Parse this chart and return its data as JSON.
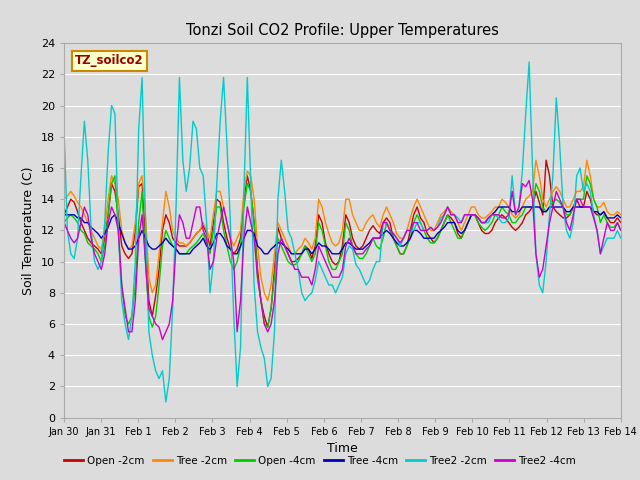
{
  "title": "Tonzi Soil CO2 Profile: Upper Temperatures",
  "xlabel": "Time",
  "ylabel": "Soil Temperature (C)",
  "ylim": [
    0,
    24
  ],
  "yticks": [
    0,
    2,
    4,
    6,
    8,
    10,
    12,
    14,
    16,
    18,
    20,
    22,
    24
  ],
  "background_color": "#dcdcdc",
  "plot_bg_color": "#dcdcdc",
  "grid_color": "#ffffff",
  "annotation_label": "TZ_soilco2",
  "annotation_color": "#990000",
  "annotation_bg": "#ffffcc",
  "annotation_border": "#cc8800",
  "legend_entries": [
    "Open -2cm",
    "Tree -2cm",
    "Open -4cm",
    "Tree -4cm",
    "Tree2 -2cm",
    "Tree2 -4cm"
  ],
  "line_colors": [
    "#cc0000",
    "#ff8800",
    "#00cc00",
    "#0000bb",
    "#00cccc",
    "#cc00cc"
  ],
  "xtick_labels": [
    "Jan 30",
    "Jan 31",
    "Feb 1",
    "Feb 2",
    "Feb 3",
    "Feb 4",
    "Feb 5",
    "Feb 6",
    "Feb 7",
    "Feb 8",
    "Feb 9",
    "Feb 10",
    "Feb 11",
    "Feb 12",
    "Feb 13",
    "Feb 14"
  ],
  "open_2cm": [
    13.0,
    13.5,
    14.0,
    13.8,
    13.2,
    12.5,
    12.0,
    11.5,
    11.2,
    11.0,
    10.8,
    10.5,
    11.5,
    13.0,
    15.0,
    14.5,
    13.0,
    11.0,
    10.5,
    10.2,
    10.5,
    12.0,
    14.8,
    15.0,
    11.5,
    7.5,
    6.5,
    7.8,
    9.5,
    12.0,
    13.0,
    12.5,
    11.5,
    11.2,
    11.0,
    11.0,
    11.0,
    11.2,
    11.5,
    11.8,
    12.0,
    12.3,
    11.8,
    11.0,
    12.5,
    14.0,
    13.8,
    12.5,
    11.5,
    10.8,
    10.5,
    10.8,
    11.5,
    14.0,
    15.5,
    14.5,
    12.5,
    9.5,
    7.5,
    6.5,
    5.8,
    7.0,
    9.5,
    12.2,
    11.5,
    11.0,
    10.5,
    10.0,
    10.0,
    10.2,
    10.5,
    11.0,
    10.8,
    10.2,
    11.0,
    13.0,
    12.5,
    11.2,
    10.5,
    10.0,
    9.8,
    10.0,
    11.0,
    13.0,
    12.5,
    11.5,
    11.0,
    10.8,
    11.0,
    11.5,
    12.0,
    12.3,
    12.0,
    11.8,
    12.5,
    12.8,
    12.5,
    11.5,
    11.0,
    10.5,
    10.5,
    11.0,
    12.0,
    13.0,
    13.5,
    12.8,
    12.5,
    11.8,
    11.5,
    11.2,
    11.5,
    12.0,
    12.5,
    13.0,
    12.8,
    12.5,
    11.8,
    11.5,
    12.0,
    12.5,
    13.0,
    13.0,
    12.5,
    12.0,
    11.8,
    11.8,
    12.0,
    12.5,
    12.8,
    13.0,
    12.8,
    12.5,
    12.2,
    12.0,
    12.2,
    12.5,
    13.0,
    13.2,
    13.5,
    14.5,
    13.8,
    13.0,
    16.5,
    15.5,
    13.5,
    13.2,
    13.0,
    12.8,
    12.8,
    13.0,
    13.5,
    14.0,
    13.5,
    13.5,
    14.5,
    14.0,
    13.2,
    13.0,
    13.0,
    13.2,
    12.8,
    12.5,
    12.5,
    12.8,
    12.5
  ],
  "tree_2cm": [
    14.0,
    14.2,
    14.5,
    14.2,
    13.8,
    13.5,
    13.0,
    12.5,
    12.0,
    11.5,
    11.0,
    10.8,
    12.0,
    14.0,
    15.5,
    15.0,
    14.0,
    12.0,
    11.2,
    10.8,
    11.0,
    12.5,
    15.0,
    15.5,
    13.0,
    9.0,
    8.0,
    8.5,
    10.5,
    12.5,
    14.5,
    13.5,
    12.0,
    11.5,
    11.2,
    11.2,
    11.0,
    11.2,
    11.5,
    11.8,
    12.0,
    12.5,
    12.0,
    11.5,
    13.0,
    14.5,
    14.5,
    13.5,
    12.5,
    11.5,
    11.0,
    11.5,
    12.0,
    14.5,
    15.8,
    15.5,
    14.0,
    11.0,
    9.0,
    8.0,
    7.5,
    8.5,
    10.5,
    12.5,
    12.0,
    11.5,
    11.0,
    10.5,
    10.5,
    10.8,
    11.0,
    11.5,
    11.2,
    10.8,
    11.5,
    14.0,
    13.5,
    12.5,
    11.8,
    11.2,
    11.0,
    11.2,
    12.0,
    14.0,
    14.0,
    13.0,
    12.5,
    12.0,
    12.0,
    12.5,
    12.8,
    13.0,
    12.5,
    12.2,
    13.0,
    13.5,
    13.0,
    12.5,
    11.8,
    11.5,
    11.5,
    12.0,
    12.8,
    13.5,
    14.0,
    13.5,
    13.0,
    12.5,
    12.0,
    12.0,
    12.5,
    13.0,
    13.2,
    13.5,
    13.2,
    13.0,
    12.5,
    12.0,
    12.5,
    13.0,
    13.5,
    13.5,
    13.0,
    12.8,
    12.8,
    13.0,
    13.2,
    13.5,
    13.5,
    14.0,
    13.8,
    13.5,
    13.0,
    12.8,
    13.0,
    13.5,
    14.0,
    14.2,
    14.5,
    16.5,
    15.5,
    14.0,
    13.5,
    14.0,
    14.5,
    14.8,
    14.5,
    14.0,
    13.5,
    13.5,
    14.0,
    14.5,
    14.5,
    14.8,
    16.5,
    15.5,
    14.0,
    13.5,
    13.5,
    13.8,
    13.2,
    13.0,
    13.0,
    13.2,
    13.0
  ],
  "open_4cm": [
    12.5,
    12.8,
    13.0,
    12.8,
    12.5,
    12.0,
    11.8,
    11.2,
    11.0,
    10.8,
    10.5,
    10.0,
    11.0,
    13.0,
    15.0,
    15.5,
    12.0,
    8.5,
    6.5,
    6.0,
    6.5,
    8.5,
    12.5,
    14.5,
    10.0,
    6.5,
    5.8,
    6.5,
    8.5,
    11.0,
    12.0,
    11.5,
    11.0,
    10.8,
    10.5,
    10.5,
    10.5,
    10.8,
    11.0,
    11.2,
    11.5,
    11.8,
    11.2,
    10.5,
    12.0,
    13.5,
    13.5,
    12.0,
    11.0,
    10.0,
    9.5,
    10.0,
    11.0,
    13.5,
    15.0,
    14.5,
    12.5,
    9.0,
    7.5,
    6.0,
    5.8,
    7.0,
    9.0,
    11.5,
    11.0,
    10.5,
    10.0,
    9.8,
    9.8,
    10.0,
    10.5,
    11.0,
    10.5,
    10.0,
    10.5,
    12.5,
    12.0,
    11.0,
    10.0,
    9.5,
    9.5,
    10.0,
    10.5,
    12.5,
    12.0,
    11.0,
    10.5,
    10.2,
    10.2,
    10.5,
    11.0,
    11.5,
    11.0,
    10.8,
    11.5,
    12.5,
    12.0,
    11.5,
    11.0,
    10.5,
    10.5,
    11.0,
    11.5,
    12.5,
    13.0,
    12.5,
    12.0,
    11.5,
    11.2,
    11.2,
    11.5,
    12.0,
    12.5,
    13.0,
    12.5,
    12.0,
    11.5,
    11.5,
    12.0,
    12.5,
    13.0,
    13.0,
    12.5,
    12.2,
    12.0,
    12.2,
    12.5,
    13.0,
    13.0,
    13.5,
    13.2,
    13.0,
    12.5,
    12.5,
    12.8,
    13.0,
    13.5,
    13.5,
    13.5,
    15.0,
    14.5,
    13.5,
    13.2,
    13.5,
    13.8,
    14.0,
    13.8,
    13.5,
    13.0,
    13.0,
    13.5,
    14.0,
    14.0,
    14.0,
    15.5,
    15.0,
    14.0,
    13.5,
    12.5,
    13.0,
    12.5,
    12.2,
    12.2,
    12.5,
    12.0
  ],
  "tree_4cm": [
    13.0,
    13.0,
    13.0,
    13.0,
    12.8,
    12.8,
    12.5,
    12.5,
    12.2,
    12.0,
    11.8,
    11.5,
    11.8,
    12.2,
    12.8,
    13.0,
    12.5,
    11.8,
    11.2,
    10.8,
    10.8,
    11.0,
    11.5,
    12.0,
    11.5,
    11.0,
    10.8,
    10.8,
    11.0,
    11.2,
    11.5,
    11.2,
    11.0,
    10.8,
    10.5,
    10.5,
    10.5,
    10.5,
    10.8,
    11.0,
    11.2,
    11.5,
    11.0,
    10.8,
    11.2,
    11.8,
    11.8,
    11.5,
    11.0,
    10.8,
    10.5,
    10.5,
    11.0,
    11.5,
    12.0,
    12.0,
    11.8,
    11.0,
    10.8,
    10.5,
    10.5,
    10.8,
    11.0,
    11.2,
    11.2,
    11.0,
    10.8,
    10.5,
    10.5,
    10.5,
    10.5,
    10.8,
    10.8,
    10.5,
    10.8,
    11.2,
    11.0,
    11.0,
    10.8,
    10.5,
    10.5,
    10.5,
    10.8,
    11.2,
    11.2,
    11.0,
    10.8,
    10.8,
    10.8,
    11.0,
    11.2,
    11.5,
    11.5,
    11.5,
    11.8,
    12.0,
    11.8,
    11.5,
    11.2,
    11.0,
    11.0,
    11.2,
    11.5,
    12.0,
    12.0,
    11.8,
    11.5,
    11.5,
    11.5,
    11.5,
    11.8,
    12.0,
    12.2,
    12.5,
    12.5,
    12.5,
    12.0,
    11.8,
    12.0,
    12.5,
    13.0,
    13.0,
    12.8,
    12.5,
    12.5,
    12.8,
    13.0,
    13.2,
    13.5,
    13.5,
    13.5,
    13.5,
    13.2,
    13.2,
    13.2,
    13.5,
    13.5,
    13.5,
    13.5,
    13.5,
    13.5,
    13.2,
    13.2,
    13.5,
    13.5,
    13.5,
    13.5,
    13.5,
    13.2,
    13.2,
    13.5,
    13.5,
    13.5,
    13.5,
    13.5,
    13.5,
    13.2,
    13.2,
    13.0,
    13.2,
    12.8,
    12.8,
    12.8,
    13.0,
    12.8
  ],
  "tree2_2cm": [
    18.5,
    12.0,
    10.5,
    10.2,
    11.5,
    15.5,
    19.0,
    16.5,
    12.0,
    10.0,
    9.5,
    10.0,
    12.5,
    17.0,
    20.0,
    19.5,
    12.0,
    7.5,
    6.0,
    5.0,
    6.5,
    10.0,
    18.5,
    21.8,
    12.5,
    5.5,
    4.0,
    3.0,
    2.5,
    3.0,
    1.0,
    2.5,
    7.0,
    13.5,
    21.8,
    16.5,
    14.5,
    16.0,
    19.0,
    18.5,
    16.0,
    15.5,
    12.5,
    8.0,
    10.0,
    15.0,
    19.0,
    21.8,
    17.5,
    12.5,
    6.5,
    2.0,
    4.5,
    14.5,
    21.8,
    15.0,
    8.5,
    5.5,
    4.5,
    3.8,
    2.0,
    2.5,
    5.5,
    14.0,
    16.5,
    14.5,
    12.0,
    11.5,
    10.5,
    9.5,
    8.0,
    7.5,
    7.8,
    8.0,
    8.8,
    10.0,
    9.5,
    9.0,
    8.5,
    8.5,
    8.0,
    8.5,
    9.0,
    10.5,
    11.0,
    10.8,
    9.8,
    9.5,
    9.0,
    8.5,
    8.8,
    9.5,
    10.0,
    10.0,
    12.5,
    12.5,
    12.0,
    11.8,
    11.5,
    11.0,
    11.5,
    12.0,
    12.0,
    12.0,
    12.5,
    12.5,
    12.0,
    12.0,
    12.2,
    12.0,
    12.2,
    12.8,
    13.0,
    13.5,
    13.0,
    13.0,
    12.8,
    12.5,
    13.0,
    13.0,
    13.0,
    13.0,
    12.8,
    12.5,
    12.5,
    12.5,
    13.0,
    13.0,
    12.8,
    12.5,
    12.5,
    12.8,
    15.5,
    13.0,
    13.5,
    15.8,
    19.5,
    22.8,
    16.0,
    10.5,
    8.5,
    8.0,
    10.0,
    13.0,
    15.5,
    20.5,
    17.5,
    13.5,
    12.0,
    11.5,
    12.5,
    15.5,
    16.0,
    14.5,
    15.0,
    14.5,
    13.0,
    12.0,
    10.5,
    11.0,
    11.5,
    11.5,
    11.5,
    12.0,
    11.5
  ],
  "tree2_4cm": [
    12.5,
    12.0,
    11.5,
    11.2,
    11.5,
    12.5,
    13.5,
    13.0,
    11.5,
    10.5,
    10.0,
    9.5,
    10.5,
    12.5,
    13.5,
    13.0,
    12.0,
    8.5,
    7.0,
    5.5,
    5.5,
    7.5,
    11.5,
    13.0,
    10.0,
    7.0,
    6.5,
    6.0,
    5.8,
    5.0,
    5.5,
    6.0,
    7.5,
    11.0,
    13.0,
    12.5,
    11.5,
    11.5,
    12.5,
    13.5,
    13.5,
    12.0,
    11.5,
    9.5,
    10.0,
    11.5,
    12.5,
    13.5,
    12.5,
    11.5,
    10.0,
    5.5,
    7.5,
    11.5,
    13.5,
    12.5,
    11.5,
    9.0,
    7.5,
    6.0,
    5.5,
    6.0,
    7.5,
    10.5,
    11.5,
    11.0,
    10.5,
    10.0,
    9.5,
    9.5,
    9.0,
    9.0,
    9.0,
    8.5,
    9.5,
    11.0,
    10.5,
    10.0,
    9.5,
    9.0,
    9.0,
    9.0,
    9.5,
    11.0,
    11.5,
    11.0,
    10.5,
    10.5,
    10.5,
    10.8,
    11.0,
    11.5,
    11.5,
    11.5,
    12.5,
    12.5,
    12.0,
    11.8,
    11.5,
    11.2,
    11.5,
    12.0,
    12.0,
    12.5,
    12.5,
    12.0,
    12.0,
    12.0,
    12.2,
    12.0,
    12.2,
    12.5,
    13.0,
    13.5,
    13.0,
    13.0,
    12.5,
    12.5,
    13.0,
    13.0,
    13.0,
    13.0,
    12.8,
    12.5,
    12.5,
    12.8,
    13.0,
    13.0,
    13.0,
    12.8,
    12.8,
    13.0,
    14.5,
    13.0,
    13.5,
    15.0,
    14.8,
    15.2,
    14.0,
    10.5,
    9.0,
    9.5,
    11.0,
    12.5,
    13.5,
    14.5,
    14.0,
    13.5,
    12.5,
    12.0,
    13.0,
    14.0,
    14.0,
    13.5,
    13.5,
    13.5,
    12.8,
    12.0,
    10.5,
    11.5,
    12.5,
    12.0,
    12.0,
    12.5,
    12.0
  ]
}
